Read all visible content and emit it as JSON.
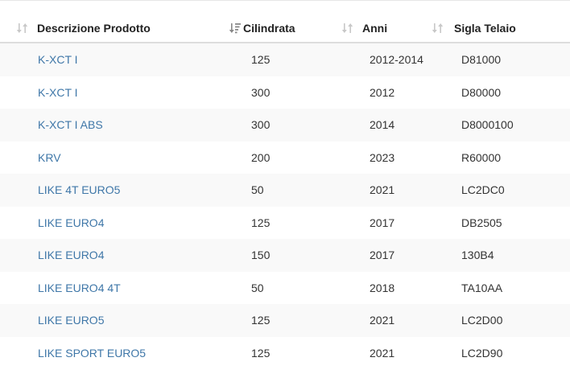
{
  "table": {
    "columns": [
      {
        "label": "Descrizione Prodotto",
        "sort_icon": "sort-icon",
        "sort_state": "unsorted"
      },
      {
        "label": "Cilindrata",
        "sort_icon": "sort-ascending-icon",
        "sort_state": "ascending"
      },
      {
        "label": "Anni",
        "sort_icon": "sort-icon",
        "sort_state": "unsorted"
      },
      {
        "label": "Sigla Telaio",
        "sort_icon": "sort-icon",
        "sort_state": "unsorted"
      }
    ],
    "rows": [
      {
        "descrizione": "K-XCT I",
        "cilindrata": "125",
        "anni": "2012-2014",
        "sigla": "D81000"
      },
      {
        "descrizione": "K-XCT I",
        "cilindrata": "300",
        "anni": "2012",
        "sigla": "D80000"
      },
      {
        "descrizione": "K-XCT I ABS",
        "cilindrata": "300",
        "anni": "2014",
        "sigla": "D8000100"
      },
      {
        "descrizione": "KRV",
        "cilindrata": "200",
        "anni": "2023",
        "sigla": "R60000"
      },
      {
        "descrizione": "LIKE 4T EURO5",
        "cilindrata": "50",
        "anni": "2021",
        "sigla": "LC2DC0"
      },
      {
        "descrizione": "LIKE EURO4",
        "cilindrata": "125",
        "anni": "2017",
        "sigla": "DB2505"
      },
      {
        "descrizione": "LIKE EURO4",
        "cilindrata": "150",
        "anni": "2017",
        "sigla": "130B4"
      },
      {
        "descrizione": "LIKE EURO4 4T",
        "cilindrata": "50",
        "anni": "2018",
        "sigla": "TA10AA"
      },
      {
        "descrizione": "LIKE EURO5",
        "cilindrata": "125",
        "anni": "2021",
        "sigla": "LC2D00"
      },
      {
        "descrizione": "LIKE SPORT EURO5",
        "cilindrata": "125",
        "anni": "2021",
        "sigla": "LC2D90"
      }
    ]
  },
  "colors": {
    "link": "#3f77a8",
    "header_text": "#222222",
    "stripe": "#f9f9f9",
    "sort_icon_inactive": "#c8c8c8",
    "sort_icon_active": "#888888"
  }
}
